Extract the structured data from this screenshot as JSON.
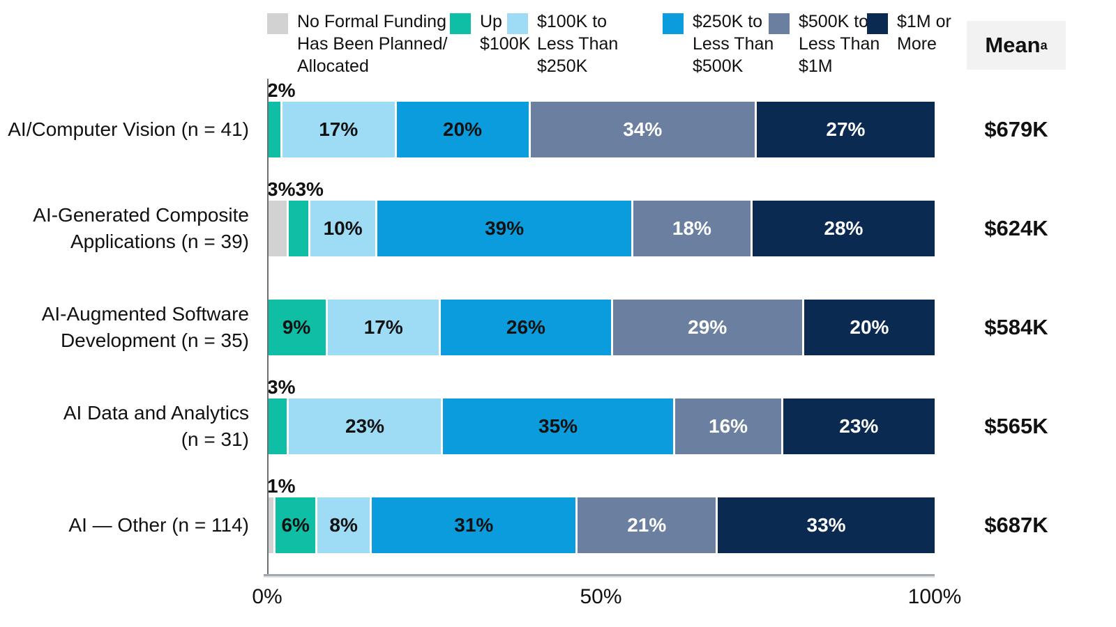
{
  "legend": {
    "items": [
      {
        "id": "no-formal-funding",
        "label": "No Formal Funding\nHas Been Planned/\nAllocated",
        "color": "#D2D2D2"
      },
      {
        "id": "up-to-100k",
        "label": "Up to\n$100K",
        "color": "#0FBFA5"
      },
      {
        "id": "100k-to-250k",
        "label": "$100K to\nLess Than\n$250K",
        "color": "#9EDCF6"
      },
      {
        "id": "250k-to-500k",
        "label": "$250K to\nLess Than\n$500K",
        "color": "#0A9CDC"
      },
      {
        "id": "500k-to-1m",
        "label": "$500K to\nLess Than\n$1M",
        "color": "#6B80A1"
      },
      {
        "id": "1m-or-more",
        "label": "$1M or\nMore",
        "color": "#0B2A52"
      }
    ]
  },
  "mean_header": {
    "label": "Mean",
    "superscript": "a"
  },
  "chart_data": {
    "type": "bar",
    "orientation": "horizontal",
    "stacked": true,
    "categories": [
      {
        "lines": [
          "AI/Computer Vision (n = 41)"
        ]
      },
      {
        "lines": [
          "AI-Generated Composite",
          "Applications (n = 39)"
        ]
      },
      {
        "lines": [
          "AI-Augmented Software",
          "Development (n = 35)"
        ]
      },
      {
        "lines": [
          "AI Data and Analytics",
          "(n = 31)"
        ]
      },
      {
        "lines": [
          "AI — Other (n = 114)"
        ]
      }
    ],
    "series": [
      {
        "name": "No Formal Funding Has Been Planned/Allocated",
        "color": "#D2D2D2",
        "text_color": "#111111",
        "values": [
          0,
          3,
          0,
          0,
          1
        ]
      },
      {
        "name": "Up to $100K",
        "color": "#0FBFA5",
        "text_color": "#111111",
        "values": [
          2,
          3,
          9,
          3,
          6
        ]
      },
      {
        "name": "$100K to Less Than $250K",
        "color": "#9EDCF6",
        "text_color": "#111111",
        "values": [
          17,
          10,
          17,
          23,
          8
        ]
      },
      {
        "name": "$250K to Less Than $500K",
        "color": "#0A9CDC",
        "text_color": "#111111",
        "values": [
          20,
          39,
          26,
          35,
          31
        ]
      },
      {
        "name": "$500K to Less Than $1M",
        "color": "#6B80A1",
        "text_color": "#FFFFFF",
        "values": [
          34,
          18,
          29,
          16,
          21
        ]
      },
      {
        "name": "$1M or More",
        "color": "#0B2A52",
        "text_color": "#FFFFFF",
        "values": [
          27,
          28,
          20,
          23,
          33
        ]
      }
    ],
    "means": [
      "$679K",
      "$624K",
      "$584K",
      "$565K",
      "$687K"
    ],
    "x_ticks": [
      "0%",
      "50%",
      "100%"
    ],
    "xlim": [
      0,
      100
    ],
    "value_suffix": "%",
    "label_outside_threshold": 6,
    "legend_position": "top",
    "grid": false
  }
}
